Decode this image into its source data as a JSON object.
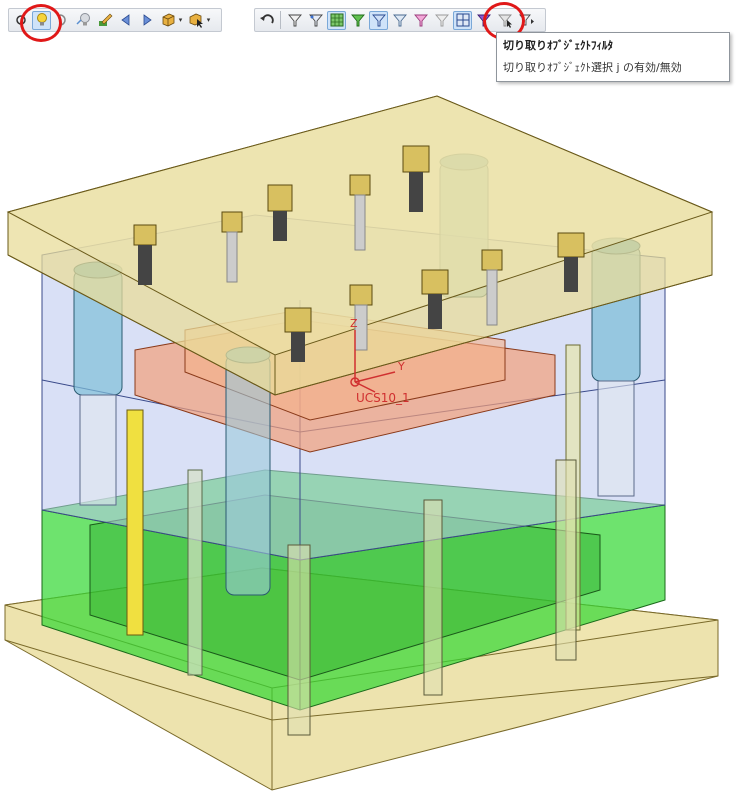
{
  "toolbar_left": {
    "buttons": [
      {
        "name": "snap-point-icon",
        "active": false
      },
      {
        "name": "lightbulb-icon",
        "active": true
      },
      {
        "name": "partial-circle-icon",
        "active": false
      },
      {
        "name": "lightbulb-off-icon",
        "active": false
      },
      {
        "name": "pencil-edit-icon",
        "active": false
      },
      {
        "name": "arrow-left-icon",
        "active": false
      },
      {
        "name": "arrow-right-icon",
        "active": false
      },
      {
        "name": "cube-view-icon",
        "active": false,
        "dropdown": true
      },
      {
        "name": "select-box-icon",
        "active": false,
        "dropdown": true
      }
    ]
  },
  "toolbar_right": {
    "buttons": [
      {
        "name": "undo-arrow-icon",
        "active": false
      },
      {
        "name": "filter-icon",
        "active": false
      },
      {
        "name": "filter-select-icon",
        "active": false
      },
      {
        "name": "filter-grid-icon",
        "active": true
      },
      {
        "name": "filter-green-icon",
        "active": false
      },
      {
        "name": "filter-box-icon",
        "active": true
      },
      {
        "name": "filter-plane-icon",
        "active": false
      },
      {
        "name": "filter-pink-icon",
        "active": false
      },
      {
        "name": "filter-grey-icon",
        "active": false
      },
      {
        "name": "filter-array-icon",
        "active": true
      },
      {
        "name": "filter-purple-icon",
        "active": false
      },
      {
        "name": "cutout-object-filter-icon",
        "active": false
      },
      {
        "name": "filter-more-icon",
        "active": false,
        "dropdown": true
      }
    ]
  },
  "tooltip": {
    "title": "切り取りｵﾌﾞｼﾞｪｸﾄﾌｨﾙﾀ",
    "description": "切り取りｵﾌﾞｼﾞｪｸﾄ選択 j の有効/無効"
  },
  "scene": {
    "ucs_label": "UCS10_1",
    "axis_z": "Z",
    "axis_y": "Y",
    "plate_colors": {
      "top_clamp": "#e8dc9a",
      "bottom_clamp": "#e8dc9a",
      "cavity": "#b9c6ee",
      "support": "#36d836",
      "insert": "#f2a07a"
    }
  }
}
